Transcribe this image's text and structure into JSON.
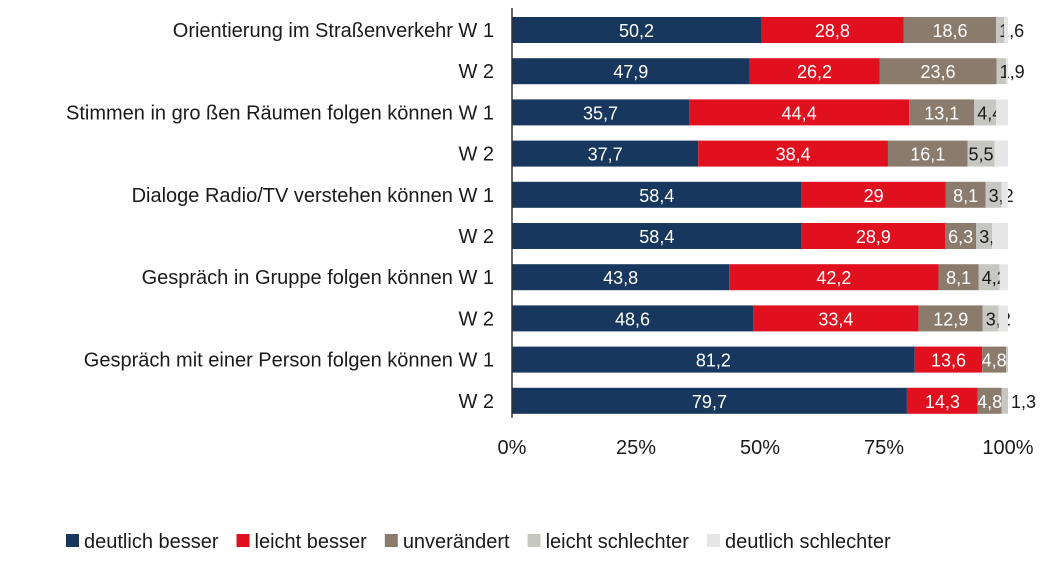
{
  "chart_data": {
    "type": "bar",
    "orientation": "horizontal",
    "stacked": true,
    "normalized": true,
    "categories": [
      "Orientierung im Straßenverkehr W 1",
      "W 2",
      "Stimmen in gro ßen Räumen folgen können W 1",
      "W 2",
      "Dialoge Radio/TV  verstehen können W 1",
      "W 2",
      "Gespräch in Gruppe folgen können W 1",
      "W 2",
      "Gespräch mit einer Person folgen können W 1",
      "W 2"
    ],
    "series": [
      {
        "name": "deutlich besser",
        "color": "#17375e",
        "values": [
          50.2,
          47.9,
          35.7,
          37.7,
          58.4,
          58.4,
          43.8,
          48.6,
          81.2,
          79.7
        ],
        "labels": [
          "50,2",
          "47,9",
          "35,7",
          "37,7",
          "58,4",
          "58,4",
          "43,8",
          "48,6",
          "81,2",
          "79,7"
        ]
      },
      {
        "name": "leicht besser",
        "color": "#e0101e",
        "values": [
          28.8,
          26.2,
          44.4,
          38.4,
          29,
          28.9,
          42.2,
          33.4,
          13.6,
          14.3
        ],
        "labels": [
          "28,8",
          "26,2",
          "44,4",
          "38,4",
          "29",
          "28,9",
          "42,2",
          "33,4",
          "13,6",
          "14,3"
        ]
      },
      {
        "name": "unverändert",
        "color": "#8a7b6c",
        "values": [
          18.6,
          23.6,
          13.1,
          16.1,
          8.1,
          6.3,
          8.1,
          12.9,
          4.8,
          4.8
        ],
        "labels": [
          "18,6",
          "23,6",
          "13,1",
          "16,1",
          "8,1",
          "6,3",
          "8,1",
          "12,9",
          "4,8",
          "4,8"
        ]
      },
      {
        "name": "leicht schlechter",
        "color": "#c7c7c2",
        "values": [
          1.6,
          1.9,
          4.4,
          5.5,
          3.2,
          3.2,
          4.2,
          3.2,
          0.4,
          1.3
        ],
        "labels": [
          "1,6",
          "1,9",
          "4,4",
          "5,5",
          "3,2",
          "3,2",
          "4,2",
          "3,2",
          "",
          "1,3"
        ]
      },
      {
        "name": "deutlich schlechter",
        "color": "#e6e6e6",
        "values": [
          0.8,
          0.4,
          2.4,
          2.7,
          1.3,
          3.2,
          1.7,
          1.9,
          0,
          0
        ],
        "labels": [
          "",
          "",
          "",
          "",
          "",
          "",
          "",
          "",
          "",
          ""
        ]
      }
    ],
    "xlim": [
      0,
      100
    ],
    "xticks": [
      "0%",
      "25%",
      "50%",
      "75%",
      "100%"
    ],
    "title": "",
    "xlabel": "",
    "ylabel": "",
    "legend": "bottom",
    "grid": false
  }
}
